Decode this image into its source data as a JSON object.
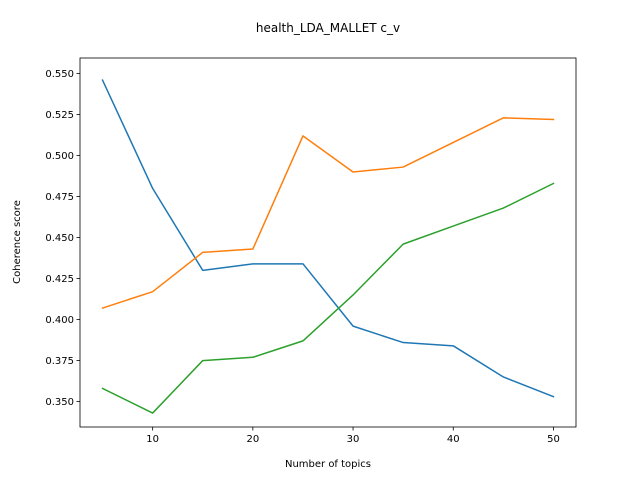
{
  "chart_data": {
    "type": "line",
    "title": "health_LDA_MALLET c_v",
    "xlabel": "Number of topics",
    "ylabel": "Coherence score",
    "x": [
      5,
      10,
      15,
      20,
      25,
      30,
      35,
      40,
      45,
      50
    ],
    "xlim": [
      2.75,
      52.25
    ],
    "ylim": [
      0.3345,
      0.5595
    ],
    "xticks": [
      10,
      20,
      30,
      40,
      50
    ],
    "yticks": [
      0.35,
      0.375,
      0.4,
      0.425,
      0.45,
      0.475,
      0.5,
      0.525,
      0.55
    ],
    "ytick_labels": [
      "0.350",
      "0.375",
      "0.400",
      "0.425",
      "0.450",
      "0.475",
      "0.500",
      "0.525",
      "0.550"
    ],
    "grid": false,
    "legend": "none",
    "series": [
      {
        "color": "#1f77b4",
        "values": [
          0.546,
          0.48,
          0.43,
          0.434,
          0.434,
          0.396,
          0.386,
          0.384,
          0.365,
          0.353
        ]
      },
      {
        "color": "#ff7f0e",
        "values": [
          0.407,
          0.417,
          0.441,
          0.443,
          0.512,
          0.49,
          0.493,
          0.508,
          0.523,
          0.522
        ]
      },
      {
        "color": "#2ca02c",
        "values": [
          0.358,
          0.343,
          0.375,
          0.377,
          0.387,
          0.415,
          0.446,
          0.457,
          0.468,
          0.483
        ]
      }
    ]
  }
}
